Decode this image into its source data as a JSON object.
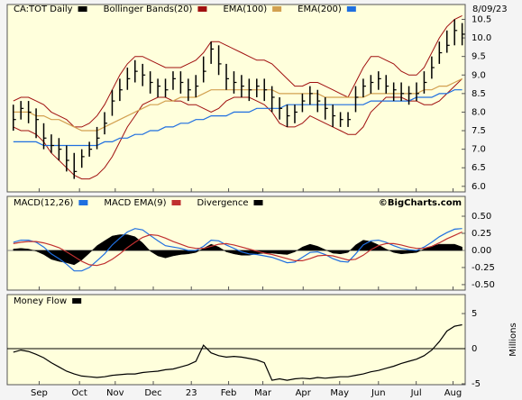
{
  "chart_data": [
    {
      "type": "ohlc",
      "title": "CA:TOT Daily",
      "color": "#000000",
      "date": "8/09/23",
      "high": [
        8.2,
        8.3,
        8.3,
        8.1,
        7.7,
        7.4,
        7.3,
        7.1,
        6.9,
        7.0,
        7.2,
        7.6,
        8.0,
        8.6,
        8.9,
        9.2,
        9.4,
        9.3,
        9.1,
        8.9,
        8.9,
        9.1,
        9.1,
        8.9,
        9.0,
        9.5,
        9.9,
        9.8,
        9.3,
        9.1,
        9.0,
        8.9,
        8.9,
        8.9,
        8.7,
        8.4,
        8.2,
        8.2,
        8.5,
        8.7,
        8.6,
        8.4,
        8.2,
        8.0,
        8.0,
        8.7,
        8.9,
        9.0,
        9.1,
        9.0,
        8.8,
        8.8,
        8.7,
        8.8,
        9.1,
        9.5,
        9.9,
        10.2,
        10.5,
        10.4
      ],
      "low": [
        7.5,
        7.8,
        7.7,
        7.3,
        7.0,
        6.9,
        6.7,
        6.4,
        6.2,
        6.5,
        6.8,
        7.0,
        7.4,
        7.9,
        8.3,
        8.6,
        8.8,
        8.7,
        8.5,
        8.4,
        8.4,
        8.6,
        8.5,
        8.3,
        8.4,
        8.8,
        9.3,
        9.0,
        8.6,
        8.5,
        8.4,
        8.3,
        8.4,
        8.3,
        8.0,
        7.8,
        7.6,
        7.7,
        8.0,
        8.2,
        8.0,
        7.8,
        7.6,
        7.6,
        7.6,
        8.0,
        8.4,
        8.5,
        8.6,
        8.5,
        8.3,
        8.3,
        8.2,
        8.3,
        8.5,
        8.9,
        9.3,
        9.6,
        9.8,
        9.8
      ],
      "close": [
        7.8,
        8.1,
        8.0,
        7.8,
        7.3,
        7.1,
        7.0,
        6.7,
        6.4,
        6.8,
        7.0,
        7.3,
        7.7,
        8.3,
        8.6,
        8.9,
        9.1,
        9.0,
        8.8,
        8.7,
        8.6,
        8.9,
        8.8,
        8.6,
        8.7,
        9.1,
        9.7,
        9.3,
        8.9,
        8.8,
        8.7,
        8.6,
        8.7,
        8.6,
        8.4,
        8.1,
        7.9,
        8.0,
        8.3,
        8.5,
        8.3,
        8.1,
        7.9,
        7.8,
        7.8,
        8.4,
        8.7,
        8.8,
        8.9,
        8.7,
        8.6,
        8.5,
        8.5,
        8.5,
        8.8,
        9.2,
        9.6,
        9.8,
        10.2,
        10.1
      ],
      "bands": {
        "name": "Bollinger Bands(20)",
        "color": "#a01010",
        "upper": [
          8.3,
          8.4,
          8.4,
          8.3,
          8.2,
          8.0,
          7.9,
          7.8,
          7.6,
          7.6,
          7.7,
          7.9,
          8.2,
          8.6,
          9.0,
          9.3,
          9.5,
          9.5,
          9.4,
          9.3,
          9.2,
          9.2,
          9.2,
          9.3,
          9.4,
          9.6,
          9.9,
          9.9,
          9.8,
          9.7,
          9.6,
          9.5,
          9.4,
          9.4,
          9.3,
          9.1,
          8.9,
          8.7,
          8.7,
          8.8,
          8.8,
          8.7,
          8.6,
          8.5,
          8.4,
          8.8,
          9.2,
          9.5,
          9.5,
          9.4,
          9.3,
          9.1,
          9.0,
          9.0,
          9.2,
          9.6,
          10.0,
          10.3,
          10.5,
          10.6
        ],
        "lower": [
          7.6,
          7.5,
          7.5,
          7.4,
          7.2,
          6.9,
          6.7,
          6.5,
          6.3,
          6.2,
          6.2,
          6.3,
          6.5,
          6.8,
          7.2,
          7.6,
          7.9,
          8.2,
          8.3,
          8.4,
          8.4,
          8.3,
          8.3,
          8.2,
          8.2,
          8.1,
          8.0,
          8.1,
          8.3,
          8.4,
          8.4,
          8.4,
          8.3,
          8.2,
          8.0,
          7.7,
          7.6,
          7.6,
          7.7,
          7.9,
          7.8,
          7.7,
          7.6,
          7.5,
          7.4,
          7.4,
          7.6,
          8.0,
          8.2,
          8.4,
          8.4,
          8.4,
          8.3,
          8.3,
          8.2,
          8.2,
          8.3,
          8.5,
          8.7,
          8.9
        ]
      },
      "series": [
        {
          "name": "EMA(100)",
          "color": "#d2a050",
          "values": [
            8.0,
            8.0,
            8.0,
            7.9,
            7.9,
            7.8,
            7.8,
            7.7,
            7.6,
            7.5,
            7.5,
            7.5,
            7.6,
            7.7,
            7.8,
            7.9,
            8.0,
            8.1,
            8.2,
            8.2,
            8.3,
            8.3,
            8.4,
            8.4,
            8.4,
            8.5,
            8.6,
            8.6,
            8.6,
            8.6,
            8.6,
            8.6,
            8.6,
            8.6,
            8.6,
            8.5,
            8.5,
            8.5,
            8.5,
            8.5,
            8.5,
            8.4,
            8.4,
            8.4,
            8.4,
            8.4,
            8.4,
            8.5,
            8.5,
            8.5,
            8.5,
            8.5,
            8.5,
            8.5,
            8.6,
            8.6,
            8.7,
            8.7,
            8.8,
            8.9
          ]
        },
        {
          "name": "EMA(200)",
          "color": "#1f6fe0",
          "values": [
            7.2,
            7.2,
            7.2,
            7.2,
            7.1,
            7.1,
            7.1,
            7.1,
            7.1,
            7.1,
            7.1,
            7.1,
            7.2,
            7.2,
            7.3,
            7.3,
            7.4,
            7.4,
            7.5,
            7.5,
            7.6,
            7.6,
            7.7,
            7.7,
            7.8,
            7.8,
            7.9,
            7.9,
            7.9,
            8.0,
            8.0,
            8.0,
            8.1,
            8.1,
            8.1,
            8.1,
            8.2,
            8.2,
            8.2,
            8.2,
            8.2,
            8.2,
            8.2,
            8.2,
            8.2,
            8.2,
            8.2,
            8.3,
            8.3,
            8.3,
            8.3,
            8.3,
            8.3,
            8.4,
            8.4,
            8.4,
            8.5,
            8.5,
            8.6,
            8.6
          ]
        }
      ],
      "ylim": [
        5.85,
        10.9
      ],
      "yticks": [
        {
          "value": 6,
          "label": "6.0"
        },
        6.5,
        {
          "value": 7,
          "label": "7.0"
        },
        7.5,
        {
          "value": 8,
          "label": "8.0"
        },
        8.5,
        {
          "value": 9,
          "label": "9.0"
        },
        9.5,
        {
          "value": 10,
          "label": "10.0"
        },
        10.5
      ]
    },
    {
      "type": "macd",
      "credit": "©BigCharts.com",
      "zero_line": true,
      "series": [
        {
          "name": "MACD(12,26)",
          "color": "#1f6fe0",
          "values": [
            0.12,
            0.15,
            0.15,
            0.12,
            0.05,
            -0.05,
            -0.12,
            -0.2,
            -0.3,
            -0.3,
            -0.25,
            -0.15,
            -0.05,
            0.08,
            0.18,
            0.27,
            0.32,
            0.3,
            0.22,
            0.14,
            0.07,
            0.05,
            0.03,
            0.0,
            0.0,
            0.06,
            0.15,
            0.14,
            0.08,
            0.03,
            -0.02,
            -0.05,
            -0.06,
            -0.08,
            -0.1,
            -0.14,
            -0.18,
            -0.17,
            -0.1,
            -0.03,
            -0.02,
            -0.06,
            -0.12,
            -0.16,
            -0.17,
            -0.05,
            0.08,
            0.14,
            0.15,
            0.12,
            0.07,
            0.03,
            0.01,
            0.0,
            0.05,
            0.12,
            0.2,
            0.26,
            0.31,
            0.32
          ]
        },
        {
          "name": "MACD EMA(9)",
          "color": "#c03030",
          "values": [
            0.1,
            0.12,
            0.13,
            0.13,
            0.11,
            0.08,
            0.04,
            -0.02,
            -0.09,
            -0.16,
            -0.21,
            -0.22,
            -0.19,
            -0.13,
            -0.05,
            0.04,
            0.12,
            0.19,
            0.23,
            0.22,
            0.18,
            0.13,
            0.09,
            0.05,
            0.03,
            0.03,
            0.06,
            0.09,
            0.1,
            0.08,
            0.05,
            0.02,
            -0.01,
            -0.04,
            -0.06,
            -0.09,
            -0.12,
            -0.15,
            -0.15,
            -0.12,
            -0.08,
            -0.07,
            -0.08,
            -0.11,
            -0.14,
            -0.13,
            -0.07,
            0.01,
            0.07,
            0.1,
            0.1,
            0.08,
            0.05,
            0.03,
            0.03,
            0.06,
            0.11,
            0.17,
            0.22,
            0.27
          ]
        },
        {
          "name": "Divergence",
          "color": "#000000",
          "style": "area",
          "values": [
            0.02,
            0.03,
            0.02,
            -0.01,
            -0.06,
            -0.13,
            -0.16,
            -0.18,
            -0.21,
            -0.14,
            -0.04,
            0.07,
            0.14,
            0.21,
            0.23,
            0.23,
            0.2,
            0.11,
            -0.01,
            -0.08,
            -0.11,
            -0.08,
            -0.06,
            -0.05,
            -0.03,
            0.03,
            0.09,
            0.05,
            -0.02,
            -0.05,
            -0.07,
            -0.07,
            -0.05,
            -0.04,
            -0.04,
            -0.05,
            -0.06,
            -0.02,
            0.05,
            0.09,
            0.06,
            0.01,
            -0.04,
            -0.05,
            -0.03,
            0.08,
            0.15,
            0.13,
            0.08,
            0.02,
            -0.03,
            -0.05,
            -0.04,
            -0.03,
            0.02,
            0.06,
            0.09,
            0.09,
            0.09,
            0.05
          ]
        }
      ],
      "ylim": [
        -0.58,
        0.79
      ],
      "yticks": [
        {
          "value": 0.5,
          "label": "0.50"
        },
        {
          "value": 0.25,
          "label": "0.25"
        },
        {
          "value": 0,
          "label": "0.00"
        },
        {
          "value": -0.25,
          "label": "-0.25"
        },
        {
          "value": -0.5,
          "label": "-0.50"
        }
      ]
    },
    {
      "type": "line",
      "zero_line": true,
      "ylabel": "Millions",
      "series": [
        {
          "name": "Money Flow",
          "color": "#000000",
          "values": [
            -0.5,
            -0.2,
            -0.4,
            -0.8,
            -1.3,
            -2.0,
            -2.6,
            -3.2,
            -3.6,
            -3.9,
            -4.0,
            -4.1,
            -4.0,
            -3.8,
            -3.7,
            -3.6,
            -3.6,
            -3.4,
            -3.3,
            -3.2,
            -3.0,
            -2.9,
            -2.6,
            -2.3,
            -1.8,
            0.5,
            -0.6,
            -1.0,
            -1.2,
            -1.1,
            -1.2,
            -1.4,
            -1.6,
            -2.0,
            -4.5,
            -4.3,
            -4.5,
            -4.3,
            -4.2,
            -4.3,
            -4.1,
            -4.2,
            -4.1,
            -4.0,
            -4.0,
            -3.8,
            -3.6,
            -3.3,
            -3.1,
            -2.8,
            -2.5,
            -2.1,
            -1.8,
            -1.5,
            -1.0,
            -0.2,
            1.0,
            2.5,
            3.2,
            3.4
          ]
        }
      ],
      "ylim": [
        -5.13,
        7.7
      ],
      "yticks": [
        5,
        0,
        -5
      ],
      "xlim": [
        -0.8,
        59.4
      ],
      "xticks": [
        {
          "value": 3.4,
          "label": "Sep"
        },
        {
          "value": 8.7,
          "label": "Oct"
        },
        {
          "value": 13.4,
          "label": "Nov"
        },
        {
          "value": 18.4,
          "label": "Dec"
        },
        {
          "value": 23.4,
          "label": "23"
        },
        {
          "value": 28.3,
          "label": "Feb"
        },
        {
          "value": 32.8,
          "label": "Mar"
        },
        {
          "value": 38.1,
          "label": "Apr"
        },
        {
          "value": 42.9,
          "label": "May"
        },
        {
          "value": 48,
          "label": "Jun"
        },
        {
          "value": 52.96,
          "label": "Jul"
        },
        {
          "value": 57.8,
          "label": "Aug"
        }
      ]
    }
  ]
}
